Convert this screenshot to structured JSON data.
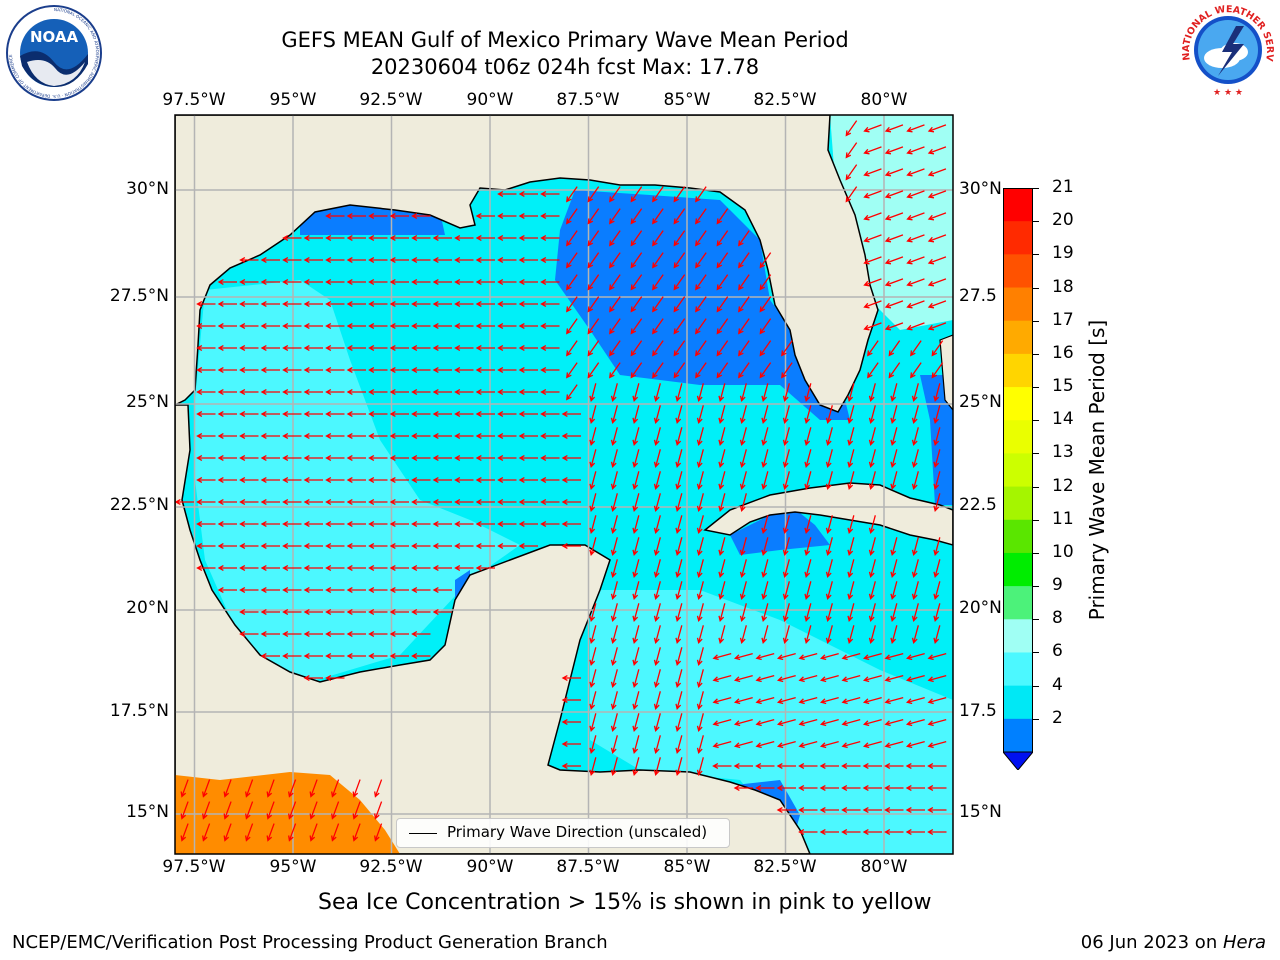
{
  "title": {
    "line1": "GEFS MEAN Gulf of Mexico Primary Wave Mean Period",
    "line2": "20230604 t06z 024h fcst   Max: 17.78"
  },
  "logos": {
    "noaa_text": "NOAA",
    "noaa_ring_text": "NATIONAL OCEANIC AND ATMOSPHERIC ADMINISTRATION · U.S. DEPARTMENT OF COMMERCE",
    "nws_ring_text": "NATIONAL WEATHER SERVICE"
  },
  "axes": {
    "lon_ticks": [
      "97.5°W",
      "95°W",
      "92.5°W",
      "90°W",
      "87.5°W",
      "85°W",
      "82.5°W",
      "80°W"
    ],
    "lat_ticks_left": [
      "30°N",
      "27.5°N",
      "25°N",
      "22.5°N",
      "20°N",
      "17.5°N",
      "15°N"
    ],
    "lat_ticks_right": [
      "30°N",
      "27.5",
      "25°N",
      "22.5",
      "20°N",
      "17.5",
      "15°N"
    ],
    "lon_range": [
      -98,
      -78.2
    ],
    "lat_range": [
      14,
      31.7
    ],
    "grid": true
  },
  "colorbar": {
    "title": "Primary Wave Mean Period [s]",
    "labels": [
      "21",
      "20",
      "19",
      "18",
      "17",
      "16",
      "15",
      "14",
      "13",
      "12",
      "11",
      "10",
      "9",
      "8",
      "6",
      "4",
      "2"
    ],
    "colors": [
      "#ff0000",
      "#ff2a00",
      "#ff5200",
      "#ff8000",
      "#ffaa00",
      "#ffd500",
      "#ffff00",
      "#eaff00",
      "#ccff00",
      "#a5f500",
      "#5ae600",
      "#00ed00",
      "#4cf27a",
      "#a0fff4",
      "#4cf8ff",
      "#00e8f5",
      "#0080ff"
    ],
    "extend_color": "#0010f0"
  },
  "legend": {
    "label": "Primary Wave Direction (unscaled)"
  },
  "footer": {
    "note": "Sea Ice Concentration > 15% is shown in pink to yellow",
    "credit": "NCEP/EMC/Verification Post Processing Product Generation Branch",
    "date": "06 Jun 2023 on ",
    "host": "Hera"
  },
  "colors": {
    "land": "#efecdc",
    "water_4_6": "#00f0f8",
    "water_6_8": "#4cf8ff",
    "water_8_9": "#a0fff4",
    "water_2_4": "#0a7dff",
    "period_17_18": "#ff8c00",
    "arrow": "#ff0000",
    "grid": "#b4b4b4"
  }
}
